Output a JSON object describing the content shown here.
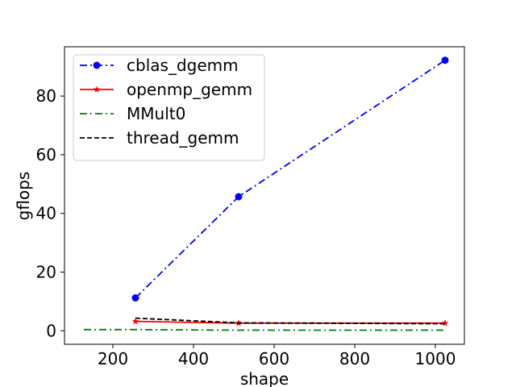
{
  "chart_data": {
    "type": "line",
    "title": "",
    "xlabel": "shape",
    "ylabel": "gflops",
    "xlim": [
      80,
      1072
    ],
    "ylim": [
      -4.6,
      96.8
    ],
    "xticks": [
      200,
      400,
      600,
      800,
      1000
    ],
    "yticks": [
      0,
      20,
      40,
      60,
      80
    ],
    "grid": false,
    "legend_position": "top-left",
    "series": [
      {
        "name": "cblas_dgemm",
        "color": "#0000ff",
        "linestyle": "dashdot",
        "marker": "circle",
        "x": [
          256,
          512,
          1024
        ],
        "y": [
          11.2,
          45.7,
          92.2
        ]
      },
      {
        "name": "openmp_gemm",
        "color": "#ff0000",
        "linestyle": "solid",
        "marker": "star",
        "x": [
          256,
          512,
          1024
        ],
        "y": [
          3.2,
          2.6,
          2.6
        ]
      },
      {
        "name": "MMult0",
        "color": "#008000",
        "linestyle": "dashdot",
        "marker": "none",
        "x": [
          128,
          256,
          512,
          1024
        ],
        "y": [
          0.4,
          0.4,
          0.2,
          0.2
        ]
      },
      {
        "name": "thread_gemm",
        "color": "#000000",
        "linestyle": "dashed",
        "marker": "none",
        "x": [
          256,
          512,
          1024
        ],
        "y": [
          4.3,
          2.7,
          2.4
        ]
      }
    ]
  }
}
